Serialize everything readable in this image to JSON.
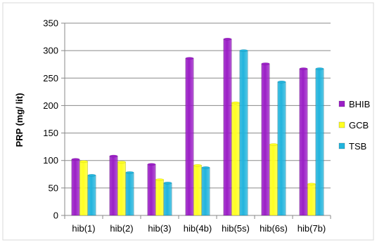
{
  "chart_data": {
    "type": "bar",
    "title": "",
    "xlabel": "",
    "ylabel": "PRP (mg/ lit)",
    "ylim": [
      0,
      350
    ],
    "yticks": [
      0,
      50,
      100,
      150,
      200,
      250,
      300,
      350
    ],
    "grid": "horizontal",
    "legend_position": "right",
    "categories": [
      "hib(1)",
      "hib(2)",
      "hib(3)",
      "hib(4b)",
      "hib(5s)",
      "hib(6s)",
      "hib(7b)"
    ],
    "series": [
      {
        "name": "BHIB",
        "color": "#9b1fc6",
        "values": [
          102,
          108,
          93,
          286,
          321,
          276,
          267
        ]
      },
      {
        "name": "GCB",
        "color": "#ffff22",
        "values": [
          98,
          97,
          65,
          91,
          205,
          129,
          57
        ]
      },
      {
        "name": "TSB",
        "color": "#22b4dd",
        "values": [
          73,
          78,
          59,
          87,
          300,
          243,
          267
        ]
      }
    ]
  }
}
